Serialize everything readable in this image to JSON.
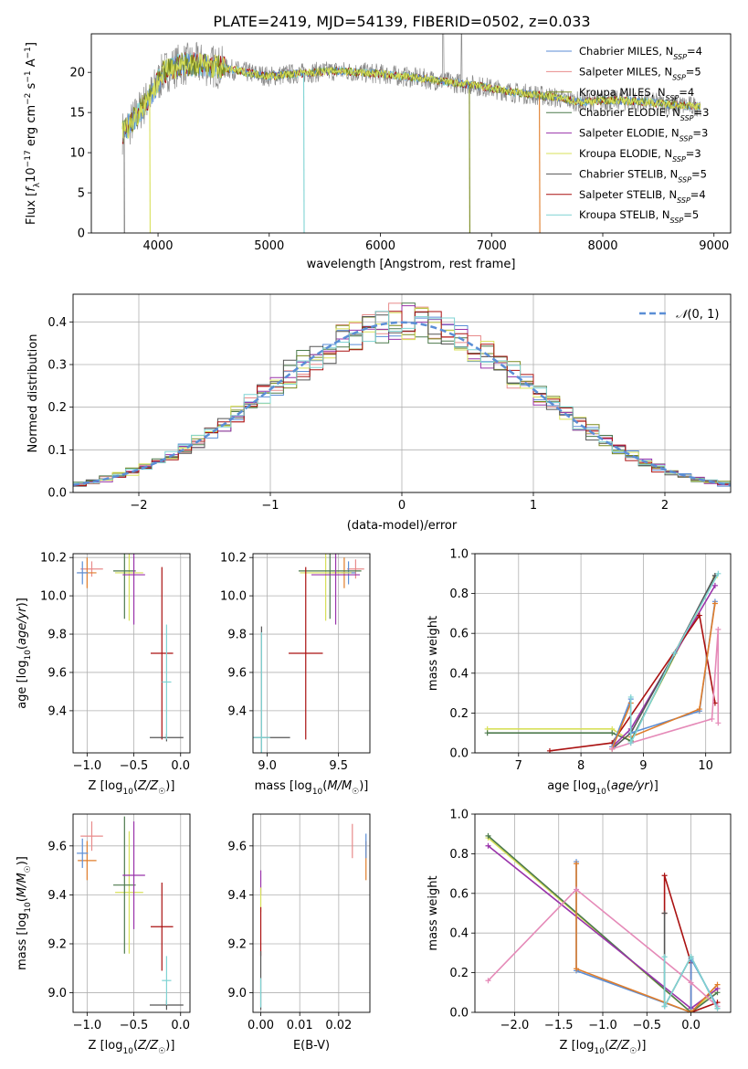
{
  "figure_title": "PLATE=2419, MJD=54139, FIBERID=0502, z=0.033",
  "colors": {
    "Chabrier MILES": "#5b8ed6",
    "Salpeter MILES": "#e88b8b",
    "Kroupa MILES": "#7a8a1f",
    "Chabrier ELODIE": "#4d7a4d",
    "Salpeter ELODIE": "#9933aa",
    "Kroupa ELODIE": "#d8e05a",
    "Chabrier STELIB": "#555555",
    "Salpeter STELIB": "#aa1111",
    "Kroupa STELIB": "#7fd3d3",
    "Pink": "#e58ab8",
    "Orange": "#e07d2a",
    "Normal": "#5b8ed6",
    "DataGray": "#888888"
  },
  "chart_data": [
    {
      "id": "spectrum",
      "type": "line",
      "title": "PLATE=2419, MJD=54139, FIBERID=0502, z=0.033",
      "xlabel": "wavelength [Angstrom, rest frame]",
      "ylabel": "Flux [f_λ 10^-17 erg cm^-2 s^-1 A^-1]",
      "xlim": [
        3400,
        9150
      ],
      "ylim": [
        0,
        24.8
      ],
      "xticks": [
        4000,
        5000,
        6000,
        7000,
        8000,
        9000
      ],
      "yticks": [
        0,
        5,
        10,
        15,
        20
      ],
      "grid": false,
      "legend_position": "top-right",
      "continuum": {
        "x": [
          3680,
          3750,
          3850,
          3950,
          4050,
          4200,
          4400,
          4600,
          4800,
          5000,
          5200,
          5400,
          5600,
          5800,
          6000,
          6200,
          6400,
          6600,
          6800,
          7000,
          7200,
          7400,
          7600,
          7800,
          8000,
          8200,
          8400,
          8600,
          8800,
          8880
        ],
        "y": [
          12.5,
          13.5,
          15.5,
          17.5,
          20.0,
          21.0,
          21.0,
          20.5,
          20.0,
          19.5,
          19.8,
          20.0,
          20.2,
          20.0,
          19.8,
          19.5,
          19.2,
          18.8,
          18.5,
          18.0,
          17.5,
          17.2,
          16.8,
          16.3,
          16.5,
          16.5,
          16.3,
          16.0,
          15.8,
          15.8
        ]
      },
      "series": [
        {
          "name": "Chabrier MILES",
          "nssp": "4",
          "cutoff": null
        },
        {
          "name": "Salpeter MILES",
          "nssp": "5",
          "cutoff": null
        },
        {
          "name": "Kroupa MILES",
          "nssp": "4",
          "cutoff": null
        },
        {
          "name": "Chabrier ELODIE",
          "nssp": "3",
          "cutoff": null
        },
        {
          "name": "Salpeter ELODIE",
          "nssp": "3",
          "cutoff": null
        },
        {
          "name": "Kroupa ELODIE",
          "nssp": "3",
          "cutoff": null
        },
        {
          "name": "Chabrier STELIB",
          "nssp": "5",
          "cutoff": null
        },
        {
          "name": "Salpeter STELIB",
          "nssp": "4",
          "cutoff": null
        },
        {
          "name": "Kroupa STELIB",
          "nssp": "5",
          "cutoff": null
        }
      ],
      "drops": [
        {
          "x": 3695,
          "color": "#888888"
        },
        {
          "x": 3925,
          "color": "#d8e05a"
        },
        {
          "x": 5310,
          "color": "#7fd3d3"
        },
        {
          "x": 6800,
          "color": "#7a8a1f"
        },
        {
          "x": 7430,
          "color": "#e07d2a"
        }
      ]
    },
    {
      "id": "residuals",
      "type": "histogram",
      "xlabel": "(data-model)/error",
      "ylabel": "Normed distribution",
      "xlim": [
        -2.5,
        2.5
      ],
      "ylim": [
        0,
        0.465
      ],
      "xticks": [
        -2,
        -1,
        0,
        1,
        2
      ],
      "yticks": [
        0,
        0.1,
        0.2,
        0.3,
        0.4
      ],
      "grid": true,
      "legend_position": "top-right",
      "legend_label": "N(0,1)",
      "bin_width": 0.1,
      "bin_start": -2.5,
      "curve": "normal"
    },
    {
      "id": "age_vs_z",
      "type": "errorbar",
      "xlabel": "Z [log10(Z/Z☉)]",
      "ylabel": "age [log10(age/yr)]",
      "xlim": [
        -1.15,
        0.1
      ],
      "ylim": [
        9.18,
        10.22
      ],
      "xticks": [
        -1.0,
        -0.5,
        0.0
      ],
      "yticks": [
        9.4,
        9.6,
        9.8,
        10.0,
        10.2
      ],
      "grid": true,
      "points": [
        {
          "color": "#e88b8b",
          "x": -0.95,
          "y": 10.14,
          "xerr": 0.12,
          "yerr": 0.04
        },
        {
          "color": "#e07d2a",
          "x": -1.0,
          "y": 10.12,
          "xerr": 0.1,
          "yerr": 0.08
        },
        {
          "color": "#5b8ed6",
          "x": -1.05,
          "y": 10.12,
          "xerr": 0.06,
          "yerr": 0.06
        },
        {
          "color": "#d8e05a",
          "x": -0.55,
          "y": 10.12,
          "xerr": 0.15,
          "yerr": 0.25
        },
        {
          "color": "#4d7a4d",
          "x": -0.6,
          "y": 10.13,
          "xerr": 0.12,
          "yerr": 0.25
        },
        {
          "color": "#9933aa",
          "x": -0.5,
          "y": 10.11,
          "xerr": 0.12,
          "yerr": 0.26
        },
        {
          "color": "#aa1111",
          "x": -0.2,
          "y": 9.7,
          "xerr": 0.12,
          "yerr": 0.45
        },
        {
          "color": "#555555",
          "x": -0.15,
          "y": 9.26,
          "xerr": 0.18,
          "yerr": 0.02
        },
        {
          "color": "#7fd3d3",
          "x": -0.15,
          "y": 9.55,
          "xerr": 0.05,
          "yerr": 0.3
        }
      ]
    },
    {
      "id": "age_vs_mass",
      "type": "errorbar",
      "xlabel": "mass [log10(M/M☉)]",
      "ylabel": "",
      "xlim": [
        8.9,
        9.72
      ],
      "ylim": [
        9.18,
        10.22
      ],
      "xticks": [
        9.0,
        9.5
      ],
      "yticks": [
        9.4,
        9.6,
        9.8,
        10.0,
        10.2
      ],
      "grid": true,
      "points": [
        {
          "color": "#e88b8b",
          "x": 9.62,
          "y": 10.14,
          "xerr": 0.06,
          "yerr": 0.05
        },
        {
          "color": "#e07d2a",
          "x": 9.54,
          "y": 10.12,
          "xerr": 0.08,
          "yerr": 0.08
        },
        {
          "color": "#5b8ed6",
          "x": 9.57,
          "y": 10.12,
          "xerr": 0.05,
          "yerr": 0.06
        },
        {
          "color": "#d8e05a",
          "x": 9.41,
          "y": 10.12,
          "xerr": 0.18,
          "yerr": 0.25
        },
        {
          "color": "#4d7a4d",
          "x": 9.44,
          "y": 10.13,
          "xerr": 0.22,
          "yerr": 0.25
        },
        {
          "color": "#9933aa",
          "x": 9.48,
          "y": 10.11,
          "xerr": 0.17,
          "yerr": 0.26
        },
        {
          "color": "#aa1111",
          "x": 9.27,
          "y": 9.7,
          "xerr": 0.12,
          "yerr": 0.45
        },
        {
          "color": "#555555",
          "x": 8.96,
          "y": 9.26,
          "xerr": 0.2,
          "yerr": 0.58
        },
        {
          "color": "#7fd3d3",
          "x": 8.96,
          "y": 9.26,
          "xerr": 0.06,
          "yerr": 0.55
        }
      ]
    },
    {
      "id": "weight_vs_age",
      "type": "line",
      "xlabel": "age [log10(age/yr)]",
      "ylabel": "mass weight",
      "xlim": [
        6.3,
        10.4
      ],
      "ylim": [
        0,
        1.0
      ],
      "xticks": [
        7,
        8,
        9,
        10
      ],
      "yticks": [
        0,
        0.2,
        0.4,
        0.6,
        0.8,
        1.0
      ],
      "grid": true,
      "series": [
        {
          "color": "#d8e05a",
          "x": [
            6.5,
            8.5,
            8.8,
            10.15
          ],
          "y": [
            0.12,
            0.12,
            0.06,
            0.88
          ]
        },
        {
          "color": "#4d7a4d",
          "x": [
            6.5,
            8.5,
            8.8,
            10.15
          ],
          "y": [
            0.1,
            0.1,
            0.06,
            0.89
          ]
        },
        {
          "color": "#9933aa",
          "x": [
            8.5,
            8.8,
            10.15
          ],
          "y": [
            0.03,
            0.12,
            0.84
          ]
        },
        {
          "color": "#aa1111",
          "x": [
            7.5,
            8.5,
            9.9,
            10.15
          ],
          "y": [
            0.01,
            0.05,
            0.69,
            0.25
          ]
        },
        {
          "color": "#555555",
          "x": [
            8.5,
            8.8,
            9.5,
            10.15
          ],
          "y": [
            0.02,
            0.1,
            0.5,
            0.89
          ]
        },
        {
          "color": "#5b8ed6",
          "x": [
            8.5,
            8.8,
            8.8,
            9.9,
            10.15
          ],
          "y": [
            0.03,
            0.27,
            0.1,
            0.21,
            0.76
          ]
        },
        {
          "color": "#e07d2a",
          "x": [
            8.5,
            8.8,
            8.8,
            9.9,
            10.15
          ],
          "y": [
            0.02,
            0.25,
            0.08,
            0.22,
            0.75
          ]
        },
        {
          "color": "#e58ab8",
          "x": [
            8.5,
            8.8,
            10.1,
            10.2,
            10.2
          ],
          "y": [
            0.02,
            0.05,
            0.17,
            0.62,
            0.15
          ]
        },
        {
          "color": "#7fd3d3",
          "x": [
            8.8,
            8.8,
            9.5,
            10.2
          ],
          "y": [
            0.28,
            0.05,
            0.5,
            0.9
          ]
        }
      ]
    },
    {
      "id": "mass_vs_z",
      "type": "errorbar",
      "xlabel": "Z [log10(Z/Z☉)]",
      "ylabel": "mass [log10(M/M☉)]",
      "xlim": [
        -1.15,
        0.1
      ],
      "ylim": [
        8.92,
        9.73
      ],
      "xticks": [
        -1.0,
        -0.5,
        0.0
      ],
      "yticks": [
        9.0,
        9.2,
        9.4,
        9.6
      ],
      "grid": true,
      "points": [
        {
          "color": "#e88b8b",
          "x": -0.95,
          "y": 9.64,
          "xerr": 0.12,
          "yerr": 0.06
        },
        {
          "color": "#e07d2a",
          "x": -1.0,
          "y": 9.54,
          "xerr": 0.1,
          "yerr": 0.08
        },
        {
          "color": "#5b8ed6",
          "x": -1.05,
          "y": 9.57,
          "xerr": 0.06,
          "yerr": 0.06
        },
        {
          "color": "#d8e05a",
          "x": -0.55,
          "y": 9.41,
          "xerr": 0.15,
          "yerr": 0.25
        },
        {
          "color": "#4d7a4d",
          "x": -0.6,
          "y": 9.44,
          "xerr": 0.12,
          "yerr": 0.28
        },
        {
          "color": "#9933aa",
          "x": -0.5,
          "y": 9.48,
          "xerr": 0.12,
          "yerr": 0.22
        },
        {
          "color": "#aa1111",
          "x": -0.2,
          "y": 9.27,
          "xerr": 0.12,
          "yerr": 0.18
        },
        {
          "color": "#555555",
          "x": -0.15,
          "y": 8.95,
          "xerr": 0.18,
          "yerr": 0.02
        },
        {
          "color": "#7fd3d3",
          "x": -0.15,
          "y": 9.05,
          "xerr": 0.05,
          "yerr": 0.1
        }
      ]
    },
    {
      "id": "mass_vs_ebv",
      "type": "errorbar",
      "xlabel": "E(B-V)",
      "ylabel": "",
      "xlim": [
        -0.002,
        0.028
      ],
      "ylim": [
        8.92,
        9.73
      ],
      "xticks": [
        0.0,
        0.01,
        0.02
      ],
      "yticks": [
        9.0,
        9.2,
        9.4,
        9.6
      ],
      "grid": true,
      "points": [
        {
          "color": "#e88b8b",
          "x": 0.0235,
          "y": 9.62,
          "xerr": 0,
          "yerr": 0.07
        },
        {
          "color": "#e07d2a",
          "x": 0.027,
          "y": 9.54,
          "xerr": 0,
          "yerr": 0.08
        },
        {
          "color": "#5b8ed6",
          "x": 0.027,
          "y": 9.6,
          "xerr": 0,
          "yerr": 0.05
        },
        {
          "color": "#9933aa",
          "x": 0.0,
          "y": 9.45,
          "xerr": 0,
          "yerr": 0.05
        },
        {
          "color": "#d8e05a",
          "x": 0.0,
          "y": 9.38,
          "xerr": 0,
          "yerr": 0.05
        },
        {
          "color": "#aa1111",
          "x": 0.0,
          "y": 9.25,
          "xerr": 0,
          "yerr": 0.1
        },
        {
          "color": "#555555",
          "x": 0.0,
          "y": 9.05,
          "xerr": 0,
          "yerr": 0.12
        },
        {
          "color": "#7fd3d3",
          "x": 0.0,
          "y": 9.0,
          "xerr": 0,
          "yerr": 0.06
        }
      ]
    },
    {
      "id": "weight_vs_z",
      "type": "line",
      "xlabel": "Z [log10(Z/Z☉)]",
      "ylabel": "mass weight",
      "xlim": [
        -2.45,
        0.45
      ],
      "ylim": [
        0,
        1.0
      ],
      "xticks": [
        -2.0,
        -1.5,
        -1.0,
        -0.5,
        0.0
      ],
      "yticks": [
        0,
        0.2,
        0.4,
        0.6,
        0.8,
        1.0
      ],
      "grid": true,
      "series": [
        {
          "color": "#d8e05a",
          "x": [
            -2.3,
            0.0,
            0.3
          ],
          "y": [
            0.88,
            0.0,
            0.12
          ]
        },
        {
          "color": "#4d7a4d",
          "x": [
            -2.3,
            0.0,
            0.3
          ],
          "y": [
            0.89,
            0.0,
            0.1
          ]
        },
        {
          "color": "#9933aa",
          "x": [
            -2.3,
            0.0,
            0.3
          ],
          "y": [
            0.84,
            0.02,
            0.12
          ]
        },
        {
          "color": "#aa1111",
          "x": [
            -0.3,
            -0.3,
            0.0,
            0.0,
            0.3
          ],
          "y": [
            0.5,
            0.69,
            0.25,
            0.0,
            0.05
          ]
        },
        {
          "color": "#555555",
          "x": [
            -0.3,
            -0.3,
            0.0,
            0.3
          ],
          "y": [
            0.5,
            0.03,
            0.28,
            0.02
          ]
        },
        {
          "color": "#5b8ed6",
          "x": [
            -1.3,
            -1.3,
            0.0,
            0.0,
            0.3
          ],
          "y": [
            0.76,
            0.21,
            0.0,
            0.27,
            0.03
          ]
        },
        {
          "color": "#e07d2a",
          "x": [
            -1.3,
            -1.3,
            0.0,
            0.3
          ],
          "y": [
            0.75,
            0.22,
            0.0,
            0.14
          ]
        },
        {
          "color": "#e58ab8",
          "x": [
            -2.3,
            -1.3,
            0.0,
            0.3
          ],
          "y": [
            0.16,
            0.62,
            0.15,
            0.03
          ]
        },
        {
          "color": "#7fd3d3",
          "x": [
            -0.3,
            -0.3,
            0.0,
            0.3
          ],
          "y": [
            0.28,
            0.03,
            0.28,
            0.02
          ]
        }
      ]
    }
  ]
}
